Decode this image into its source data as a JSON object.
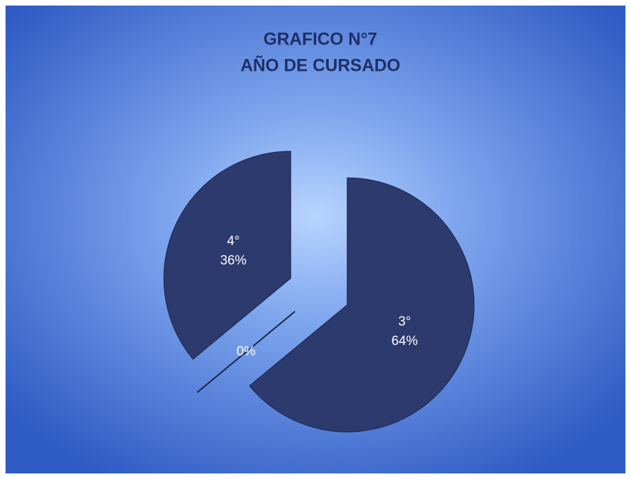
{
  "chart_data": {
    "type": "pie",
    "title": "GRAFICO N°7",
    "subtitle": "AÑO DE CURSADO",
    "categories": [
      "3°",
      null,
      "4°"
    ],
    "values": [
      64,
      0,
      36
    ],
    "value_labels": [
      "64%",
      "0%",
      "36%"
    ],
    "color": "#2c3a6e"
  }
}
